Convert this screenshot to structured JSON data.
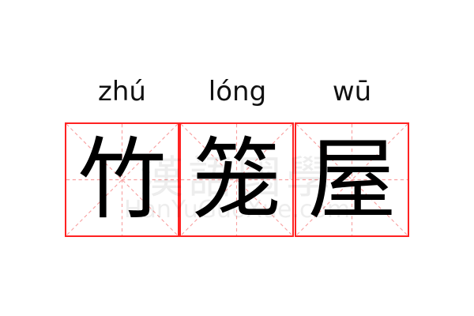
{
  "words": [
    {
      "pinyin": "zhú",
      "char": "竹"
    },
    {
      "pinyin": "lóng",
      "char": "笼"
    },
    {
      "pinyin": "wū",
      "char": "屋"
    }
  ],
  "watermark": {
    "chinese": "漢語國學",
    "latin": "HanYuGuoXue.com"
  },
  "colors": {
    "grid_border": "#ff2222",
    "guide_lines": "#f8a0a0",
    "text": "#000000"
  }
}
